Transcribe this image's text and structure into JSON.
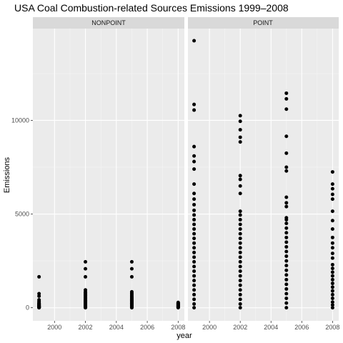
{
  "chart_data": {
    "type": "scatter",
    "title": "USA Coal Combustion-related Sources Emissions 1999–2008",
    "xlabel": "year",
    "ylabel": "Emissions",
    "xlim": [
      1998.6,
      2008.4
    ],
    "ylim": [
      -700,
      14900
    ],
    "x_ticks": [
      2000,
      2002,
      2004,
      2006,
      2008
    ],
    "x_tick_labels": [
      "2000",
      "2002",
      "2004",
      "2006",
      "2008"
    ],
    "y_ticks": [
      0,
      5000,
      10000
    ],
    "y_tick_labels": [
      "0",
      "5000",
      "10000"
    ],
    "grid": true,
    "facets": [
      {
        "label": "NONPOINT",
        "series": [
          {
            "x": 1999,
            "values": [
              1650,
              750,
              620,
              420,
              350,
              300,
              250,
              220,
              200,
              180,
              160,
              140,
              120,
              100,
              90,
              80,
              60,
              50,
              40,
              30,
              20,
              10,
              5,
              0
            ]
          },
          {
            "x": 2002,
            "values": [
              2450,
              2080,
              1650,
              950,
              850,
              800,
              750,
              700,
              650,
              600,
              550,
              500,
              450,
              400,
              380,
              360,
              340,
              320,
              300,
              280,
              260,
              240,
              220,
              200,
              180,
              160,
              140,
              120,
              100,
              80,
              60,
              40,
              20,
              0
            ]
          },
          {
            "x": 2005,
            "values": [
              2450,
              2080,
              1650,
              850,
              780,
              720,
              660,
              600,
              560,
              520,
              480,
              440,
              400,
              370,
              340,
              310,
              280,
              250,
              220,
              190,
              160,
              130,
              100,
              70,
              40,
              20,
              0
            ]
          },
          {
            "x": 2008,
            "values": [
              280,
              250,
              220,
              200,
              180,
              160,
              140,
              120,
              100,
              80,
              60,
              40,
              20,
              0
            ]
          }
        ]
      },
      {
        "label": "POINT",
        "series": [
          {
            "x": 1999,
            "values": [
              14250,
              10850,
              10550,
              8600,
              8100,
              7800,
              7400,
              6600,
              6100,
              5800,
              5500,
              5200,
              4950,
              4700,
              4450,
              4200,
              3950,
              3700,
              3450,
              3200,
              2950,
              2700,
              2450,
              2200,
              1950,
              1700,
              1450,
              1200,
              950,
              700,
              450,
              200,
              0
            ]
          },
          {
            "x": 2002,
            "values": [
              10250,
              9950,
              9500,
              9100,
              8850,
              7050,
              6850,
              6500,
              6100,
              5150,
              4950,
              4700,
              4450,
              4200,
              3950,
              3700,
              3450,
              3200,
              2950,
              2700,
              2450,
              2200,
              1950,
              1700,
              1450,
              1200,
              950,
              700,
              450,
              200,
              0
            ]
          },
          {
            "x": 2005,
            "values": [
              11450,
              11150,
              10600,
              9150,
              8250,
              7500,
              7300,
              5900,
              5600,
              5400,
              4800,
              4700,
              4500,
              4250,
              4000,
              3750,
              3500,
              3250,
              3000,
              2750,
              2500,
              2250,
              2000,
              1750,
              1500,
              1250,
              1000,
              750,
              500,
              250,
              0
            ]
          },
          {
            "x": 2008,
            "values": [
              7250,
              6600,
              6350,
              6050,
              5800,
              5150,
              4650,
              4200,
              3750,
              3450,
              3200,
              2900,
              2650,
              2300,
              2100,
              1900,
              1700,
              1500,
              1300,
              1100,
              900,
              700,
              500,
              300,
              150,
              0
            ]
          }
        ]
      }
    ]
  }
}
